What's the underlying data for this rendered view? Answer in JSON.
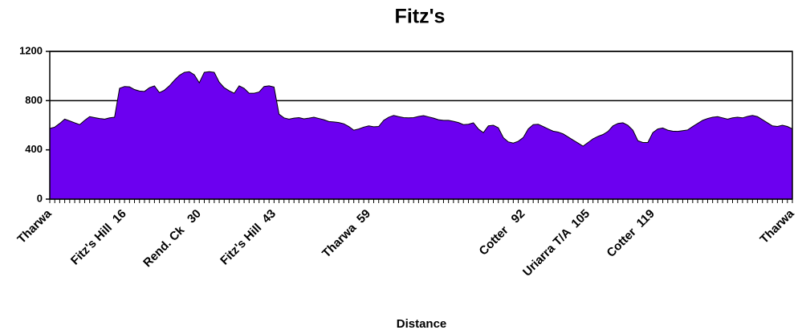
{
  "chart_data": {
    "type": "area",
    "title": "Fitz's",
    "x_label": "Distance",
    "categories": [
      "Tharwa",
      null,
      null,
      null,
      null,
      null,
      null,
      null,
      null,
      null,
      null,
      null,
      null,
      null,
      null,
      "Fitz's Hill  16",
      null,
      null,
      null,
      null,
      null,
      null,
      null,
      null,
      null,
      null,
      null,
      null,
      null,
      null,
      "Rend. Ck   30",
      null,
      null,
      null,
      null,
      null,
      null,
      null,
      null,
      null,
      null,
      null,
      null,
      null,
      null,
      "Fitz's Hill  43",
      null,
      null,
      null,
      null,
      null,
      null,
      null,
      null,
      null,
      null,
      null,
      null,
      null,
      null,
      null,
      null,
      null,
      null,
      "Tharwa  59",
      null,
      null,
      null,
      null,
      null,
      null,
      null,
      null,
      null,
      null,
      null,
      null,
      null,
      null,
      null,
      null,
      null,
      null,
      null,
      null,
      null,
      null,
      null,
      null,
      null,
      null,
      null,
      null,
      null,
      null,
      "Cotter   92",
      null,
      null,
      null,
      null,
      null,
      null,
      null,
      null,
      null,
      null,
      null,
      null,
      "Uriarra T/A  105",
      null,
      null,
      null,
      null,
      null,
      null,
      null,
      null,
      null,
      null,
      null,
      null,
      "Cotter  119",
      null,
      null,
      null,
      null,
      null,
      null,
      null,
      null,
      null,
      null,
      null,
      null,
      null,
      null,
      null,
      null,
      null,
      null,
      null,
      null,
      null,
      null,
      null,
      null,
      null,
      null,
      null,
      "Tharwa"
    ],
    "values": [
      574,
      585,
      615,
      650,
      635,
      620,
      605,
      640,
      670,
      662,
      655,
      650,
      660,
      665,
      900,
      915,
      912,
      890,
      878,
      875,
      905,
      920,
      865,
      885,
      920,
      965,
      1005,
      1030,
      1035,
      1010,
      945,
      1030,
      1035,
      1030,
      950,
      905,
      880,
      860,
      920,
      900,
      860,
      860,
      870,
      915,
      920,
      910,
      690,
      660,
      650,
      658,
      662,
      652,
      658,
      665,
      655,
      645,
      630,
      627,
      622,
      612,
      590,
      560,
      570,
      585,
      595,
      588,
      590,
      640,
      665,
      680,
      670,
      662,
      660,
      662,
      672,
      678,
      668,
      658,
      645,
      640,
      640,
      632,
      622,
      605,
      608,
      620,
      570,
      540,
      595,
      600,
      580,
      500,
      465,
      455,
      470,
      500,
      570,
      605,
      608,
      590,
      570,
      552,
      545,
      530,
      505,
      480,
      455,
      430,
      460,
      490,
      510,
      525,
      550,
      595,
      615,
      620,
      600,
      560,
      475,
      460,
      460,
      540,
      570,
      578,
      560,
      552,
      550,
      556,
      562,
      590,
      615,
      640,
      655,
      665,
      670,
      660,
      650,
      660,
      665,
      660,
      672,
      680,
      670,
      645,
      620,
      595,
      590,
      600,
      590,
      570
    ],
    "color": "#6c00f0",
    "ylim": [
      0,
      1200
    ],
    "yticks": [
      0,
      400,
      800,
      1200
    ],
    "grid": true
  }
}
